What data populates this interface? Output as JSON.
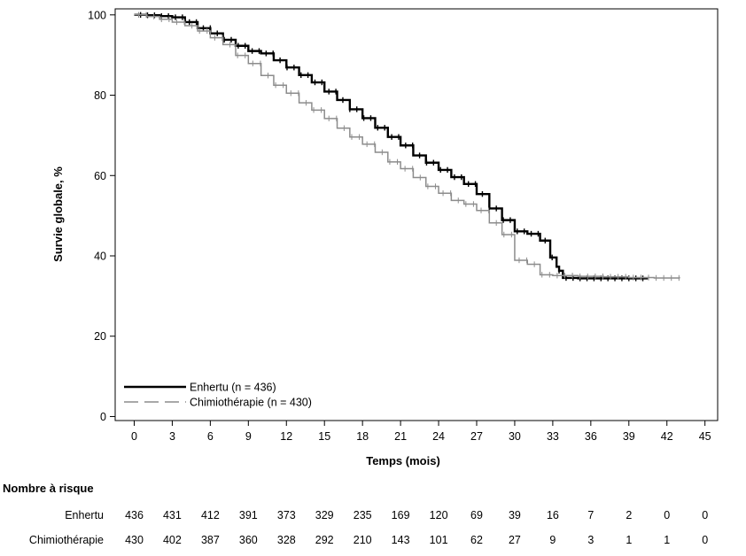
{
  "chart_data": {
    "type": "line",
    "title": "",
    "xlabel": "Temps (mois)",
    "ylabel": "Survie globale, %",
    "xlim": [
      -1.5,
      46
    ],
    "ylim": [
      -1,
      101.5
    ],
    "xticks": [
      0,
      3,
      6,
      9,
      12,
      15,
      18,
      21,
      24,
      27,
      30,
      33,
      36,
      39,
      42,
      45
    ],
    "yticks": [
      0,
      20,
      40,
      60,
      80,
      100
    ],
    "grid": false,
    "legend_position": "bottom-left",
    "series": [
      {
        "name": "Enhertu (n = 436)",
        "color": "#000000",
        "style": "solid",
        "points": [
          [
            0,
            100
          ],
          [
            1,
            99.9
          ],
          [
            2,
            99.7
          ],
          [
            3,
            99.4
          ],
          [
            4,
            98.2
          ],
          [
            5,
            96.7
          ],
          [
            6,
            95.4
          ],
          [
            7,
            93.8
          ],
          [
            8,
            92.3
          ],
          [
            9,
            91.0
          ],
          [
            10,
            90.4
          ],
          [
            11,
            88.7
          ],
          [
            12,
            86.9
          ],
          [
            13,
            85.0
          ],
          [
            14,
            83.2
          ],
          [
            15,
            80.9
          ],
          [
            16,
            78.8
          ],
          [
            17,
            76.5
          ],
          [
            18,
            74.3
          ],
          [
            19,
            71.9
          ],
          [
            20,
            69.6
          ],
          [
            21,
            67.5
          ],
          [
            22,
            65.0
          ],
          [
            23,
            63.2
          ],
          [
            24,
            61.4
          ],
          [
            25,
            59.6
          ],
          [
            26,
            57.9
          ],
          [
            27,
            55.4
          ],
          [
            28,
            51.8
          ],
          [
            29,
            48.9
          ],
          [
            30,
            46.1
          ],
          [
            31,
            45.5
          ],
          [
            32,
            43.8
          ],
          [
            32.8,
            39.6
          ],
          [
            33.3,
            37.3
          ],
          [
            33.5,
            36.3
          ],
          [
            33.8,
            34.5
          ],
          [
            35,
            34.4
          ],
          [
            37,
            34.4
          ],
          [
            39,
            34.4
          ],
          [
            40.5,
            34.4
          ]
        ]
      },
      {
        "name": "Chimiothérapie (n = 430)",
        "color": "#8c8c8c",
        "style": "dashed",
        "points": [
          [
            0,
            100
          ],
          [
            1,
            99.6
          ],
          [
            2,
            98.9
          ],
          [
            3,
            98.2
          ],
          [
            4,
            97.3
          ],
          [
            5,
            96.0
          ],
          [
            6,
            94.3
          ],
          [
            7,
            92.6
          ],
          [
            8,
            89.9
          ],
          [
            9,
            87.9
          ],
          [
            10,
            84.9
          ],
          [
            11,
            82.5
          ],
          [
            12,
            80.5
          ],
          [
            13,
            78.1
          ],
          [
            14,
            76.3
          ],
          [
            15,
            74.2
          ],
          [
            16,
            71.8
          ],
          [
            17,
            69.6
          ],
          [
            18,
            67.8
          ],
          [
            19,
            65.8
          ],
          [
            20,
            63.4
          ],
          [
            21,
            61.7
          ],
          [
            22,
            59.5
          ],
          [
            23,
            57.3
          ],
          [
            24,
            55.6
          ],
          [
            25,
            53.8
          ],
          [
            26,
            52.9
          ],
          [
            27,
            51.3
          ],
          [
            28,
            48.2
          ],
          [
            29,
            45.3
          ],
          [
            30,
            38.9
          ],
          [
            31,
            37.9
          ],
          [
            32,
            35.3
          ],
          [
            33,
            35.1
          ],
          [
            35,
            34.9
          ],
          [
            37,
            34.8
          ],
          [
            39,
            34.6
          ],
          [
            41,
            34.5
          ],
          [
            43,
            34.4
          ]
        ]
      }
    ]
  },
  "risk_table": {
    "title": "Nombre à risque",
    "rows": [
      {
        "label": "Enhertu",
        "values": [
          "436",
          "431",
          "412",
          "391",
          "373",
          "329",
          "235",
          "169",
          "120",
          "69",
          "39",
          "16",
          "7",
          "2",
          "0",
          "0"
        ]
      },
      {
        "label": "Chimiothérapie",
        "values": [
          "430",
          "402",
          "387",
          "360",
          "328",
          "292",
          "210",
          "143",
          "101",
          "62",
          "27",
          "9",
          "3",
          "1",
          "1",
          "0"
        ]
      }
    ]
  }
}
